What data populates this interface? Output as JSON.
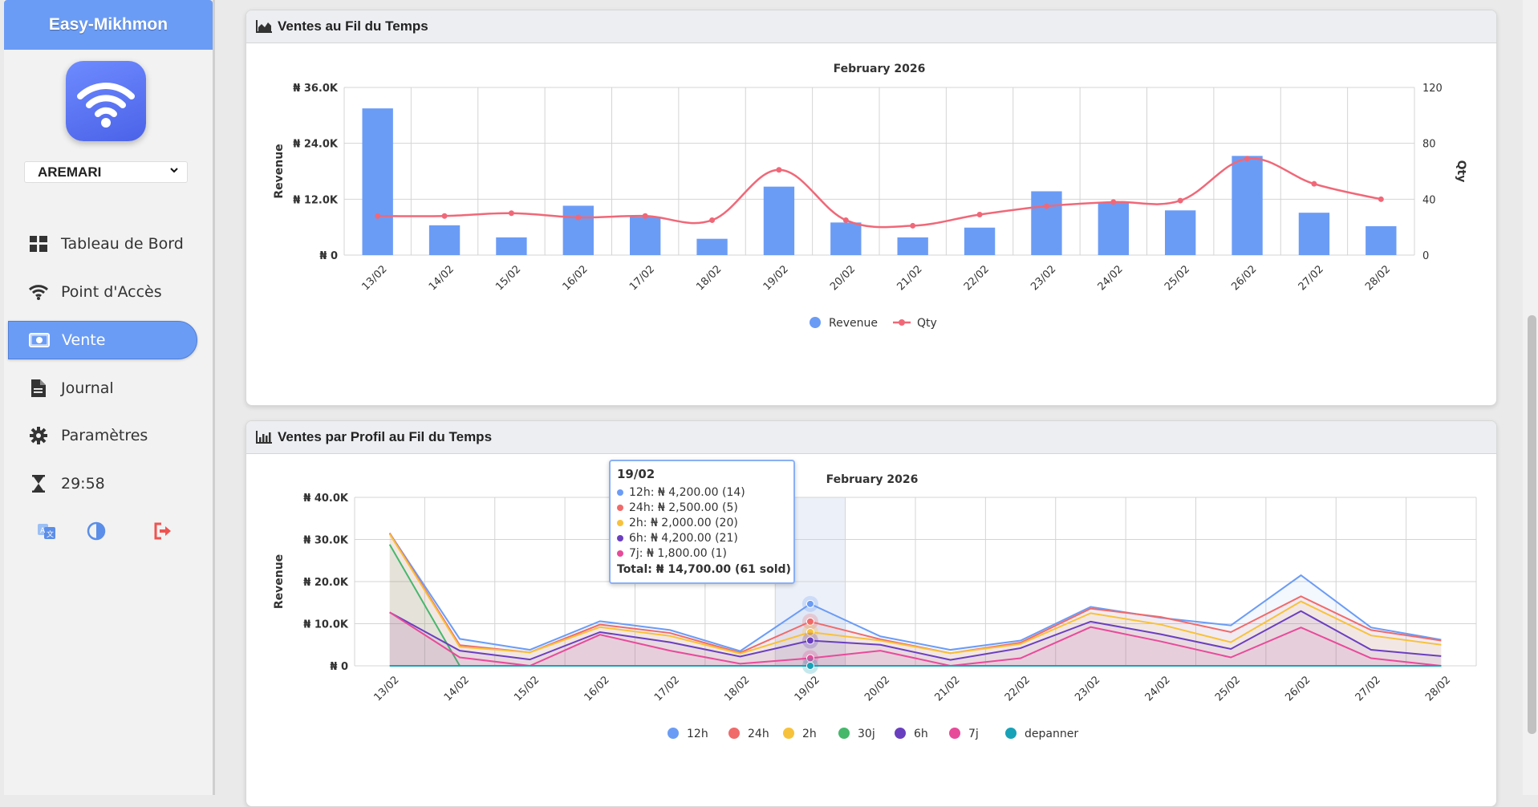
{
  "app": {
    "brand": "Easy-Mikhmon",
    "router_select": "AREMARI",
    "nav": [
      {
        "label": "Tableau de Bord",
        "icon": "dashboard-icon"
      },
      {
        "label": "Point d'Accès",
        "icon": "wifi-icon"
      },
      {
        "label": "Vente",
        "icon": "money-icon",
        "active": true
      },
      {
        "label": "Journal",
        "icon": "document-icon"
      },
      {
        "label": "Paramètres",
        "icon": "gear-icon"
      },
      {
        "label": "29:58",
        "icon": "hourglass-icon"
      }
    ],
    "tools": [
      "translate-icon",
      "contrast-icon",
      "logout-icon"
    ]
  },
  "colors": {
    "accent": "#6b9cf5",
    "revenue_bar": "#6b9cf5",
    "qty_line": "#f06878",
    "logout": "#ef5350"
  },
  "card1": {
    "title": "Ventes au Fil du Temps"
  },
  "card2": {
    "title": "Ventes par Profil au Fil du Temps"
  },
  "chart_data": [
    {
      "type": "bar",
      "title": "February 2026",
      "ylabel": "Revenue",
      "y2label": "Qty",
      "categories": [
        "13/02",
        "14/02",
        "15/02",
        "16/02",
        "17/02",
        "18/02",
        "19/02",
        "20/02",
        "21/02",
        "22/02",
        "23/02",
        "24/02",
        "25/02",
        "26/02",
        "27/02",
        "28/02"
      ],
      "yticks": [
        "₦ 0",
        "₦ 12.0K",
        "₦ 24.0K",
        "₦ 36.0K"
      ],
      "y2ticks": [
        "0",
        "40",
        "80",
        "120"
      ],
      "ylim": [
        0,
        36000
      ],
      "y2lim": [
        0,
        120
      ],
      "series": [
        {
          "name": "Revenue",
          "kind": "bar",
          "values": [
            31500,
            6400,
            3800,
            10600,
            8200,
            3500,
            14700,
            7000,
            3800,
            5900,
            13700,
            11200,
            9600,
            21300,
            9100,
            6200
          ]
        },
        {
          "name": "Qty",
          "kind": "line",
          "values": [
            28,
            28,
            30,
            27,
            28,
            25,
            61,
            25,
            21,
            29,
            35,
            38,
            39,
            69,
            51,
            40
          ]
        }
      ],
      "legend": "bottom"
    },
    {
      "type": "area",
      "title": "February 2026",
      "ylabel": "Revenue",
      "categories": [
        "13/02",
        "14/02",
        "15/02",
        "16/02",
        "17/02",
        "18/02",
        "19/02",
        "20/02",
        "21/02",
        "22/02",
        "23/02",
        "24/02",
        "25/02",
        "26/02",
        "27/02",
        "28/02"
      ],
      "yticks": [
        "₦ 0",
        "₦ 10.0K",
        "₦ 20.0K",
        "₦ 30.0K",
        "₦ 40.0K"
      ],
      "ylim": [
        0,
        40000
      ],
      "series": [
        {
          "name": "12h",
          "color": "#6b9cf5",
          "values": [
            31500,
            6400,
            3800,
            10600,
            8500,
            3500,
            14700,
            7000,
            3800,
            6000,
            14000,
            11400,
            9600,
            21500,
            9100,
            6200
          ]
        },
        {
          "name": "24h",
          "color": "#f06a6a",
          "values": [
            31500,
            4900,
            3200,
            9800,
            7800,
            3100,
            10500,
            6300,
            3000,
            5500,
            13600,
            11600,
            8000,
            16500,
            8500,
            6000
          ]
        },
        {
          "name": "2h",
          "color": "#f7c23b",
          "values": [
            31300,
            4500,
            3200,
            9200,
            7100,
            2900,
            8000,
            6000,
            3000,
            5200,
            12500,
            9800,
            5600,
            15300,
            7200,
            5000
          ]
        },
        {
          "name": "30j",
          "color": "#45b86b",
          "values": [
            28800,
            0,
            0,
            0,
            0,
            0,
            0,
            0,
            0,
            0,
            0,
            0,
            0,
            0,
            0,
            0
          ]
        },
        {
          "name": "6h",
          "color": "#6a3fbf",
          "values": [
            12700,
            3600,
            1500,
            8000,
            5600,
            2200,
            6000,
            5000,
            1400,
            4200,
            10500,
            7500,
            4000,
            13000,
            3800,
            2300
          ]
        },
        {
          "name": "7j",
          "color": "#e84a9a",
          "values": [
            12700,
            2000,
            0,
            7400,
            3600,
            500,
            1800,
            3600,
            0,
            1800,
            9200,
            5800,
            2000,
            9100,
            1800,
            0
          ]
        },
        {
          "name": "depanner",
          "color": "#17a2b8",
          "values": [
            0,
            0,
            0,
            0,
            0,
            0,
            0,
            0,
            0,
            0,
            0,
            0,
            0,
            0,
            0,
            0
          ]
        }
      ],
      "legend": "bottom"
    }
  ],
  "tooltip": {
    "title": "19/02",
    "rows": [
      {
        "text": "12h: ₦ 4,200.00 (14)",
        "color": "#6b9cf5"
      },
      {
        "text": "24h: ₦ 2,500.00 (5)",
        "color": "#f06a6a"
      },
      {
        "text": "2h: ₦ 2,000.00 (20)",
        "color": "#f7c23b"
      },
      {
        "text": "6h: ₦ 4,200.00 (21)",
        "color": "#6a3fbf"
      },
      {
        "text": "7j: ₦ 1,800.00 (1)",
        "color": "#e84a9a"
      }
    ],
    "total": "Total: ₦ 14,700.00 (61 sold)"
  }
}
